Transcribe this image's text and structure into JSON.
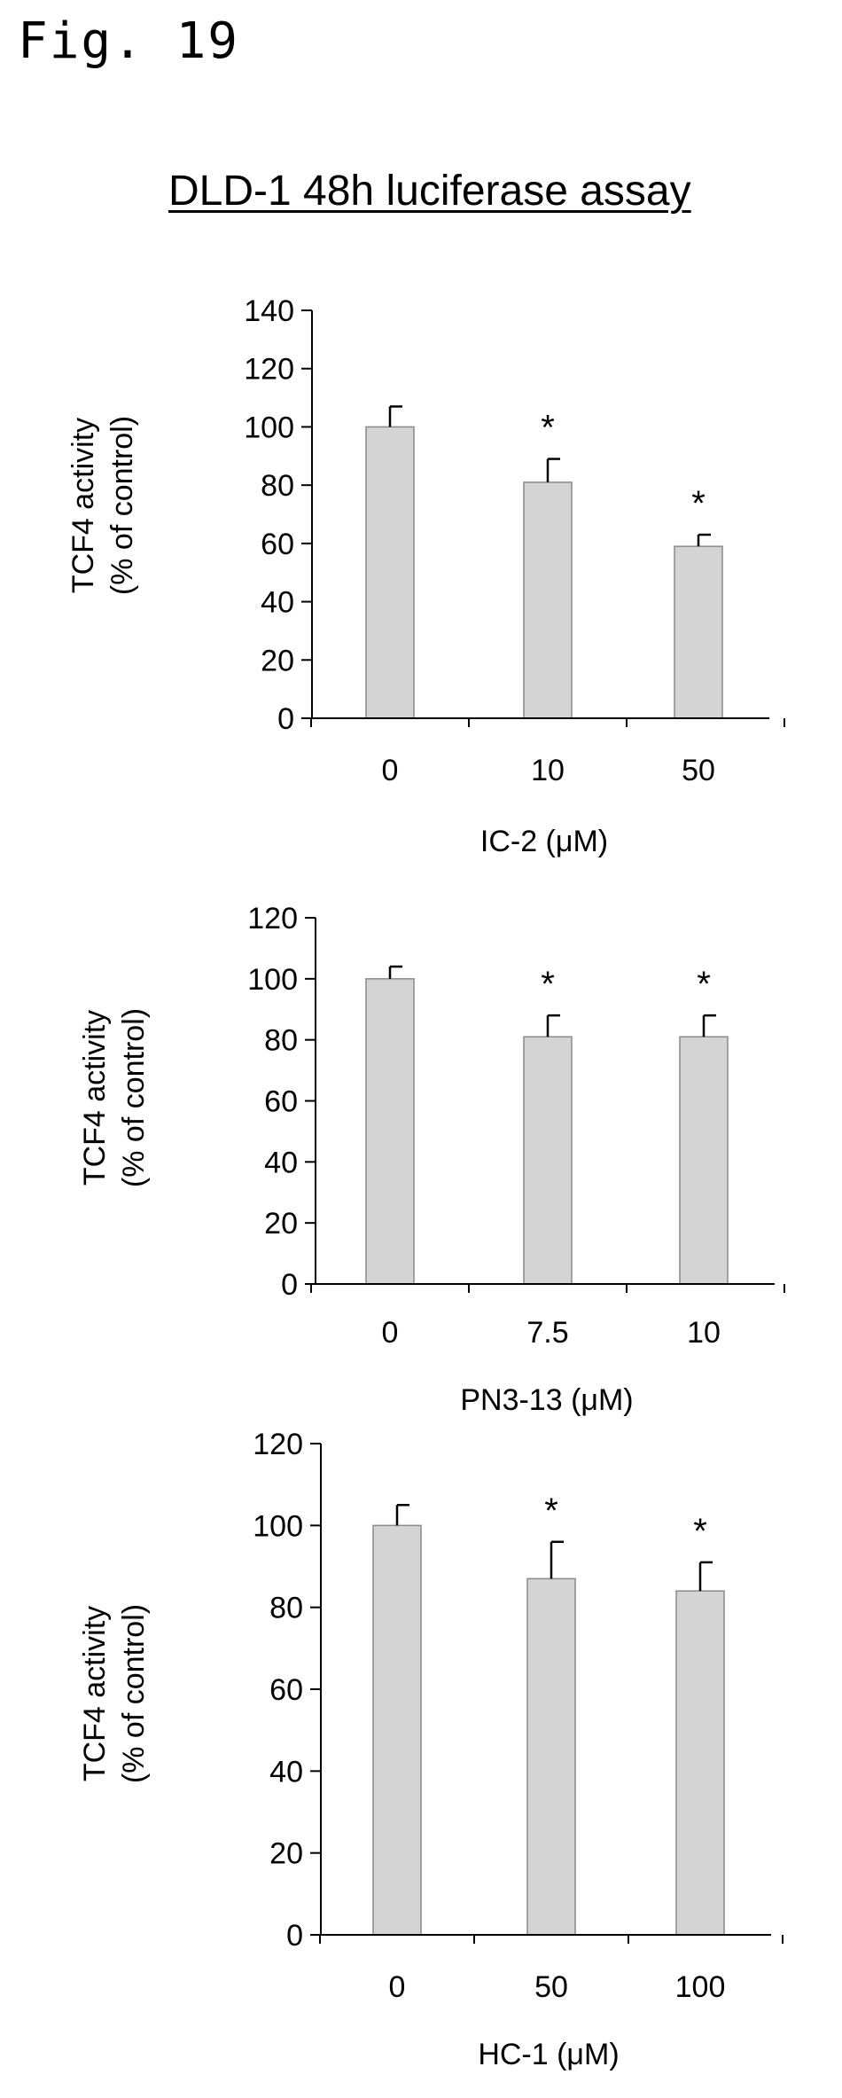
{
  "figure_label": "Fig. 19",
  "title": "DLD-1 48h luciferase assay",
  "colors": {
    "bar_fill": "#d4d4d4",
    "bar_stroke": "#8a8a8a",
    "axis": "#000000"
  },
  "chart_data": [
    {
      "type": "bar",
      "categories": [
        "0",
        "10",
        "50"
      ],
      "values": [
        100,
        81,
        59
      ],
      "error": [
        7,
        8,
        4
      ],
      "significance": [
        "",
        "*",
        "*"
      ],
      "xlabel": "IC-2 (μM)",
      "ylabel": [
        "TCF4 activity",
        "(% of control)"
      ],
      "ylim": [
        0,
        140
      ],
      "yticks": [
        0,
        20,
        40,
        60,
        80,
        100,
        120,
        140
      ],
      "grid": false
    },
    {
      "type": "bar",
      "categories": [
        "0",
        "7.5",
        "10"
      ],
      "values": [
        100,
        81,
        81
      ],
      "error": [
        4,
        7,
        7
      ],
      "significance": [
        "",
        "*",
        "*"
      ],
      "xlabel": "PN3-13 (μM)",
      "ylabel": [
        "TCF4 activity",
        "(% of control)"
      ],
      "ylim": [
        0,
        120
      ],
      "yticks": [
        0,
        20,
        40,
        60,
        80,
        100,
        120
      ],
      "grid": false
    },
    {
      "type": "bar",
      "categories": [
        "0",
        "50",
        "100"
      ],
      "values": [
        100,
        87,
        84
      ],
      "error": [
        5,
        9,
        7
      ],
      "significance": [
        "",
        "*",
        "*"
      ],
      "xlabel": "HC-1 (μM)",
      "ylabel": [
        "TCF4 activity",
        "(% of control)"
      ],
      "ylim": [
        0,
        120
      ],
      "yticks": [
        0,
        20,
        40,
        60,
        80,
        100,
        120
      ],
      "grid": false
    }
  ]
}
